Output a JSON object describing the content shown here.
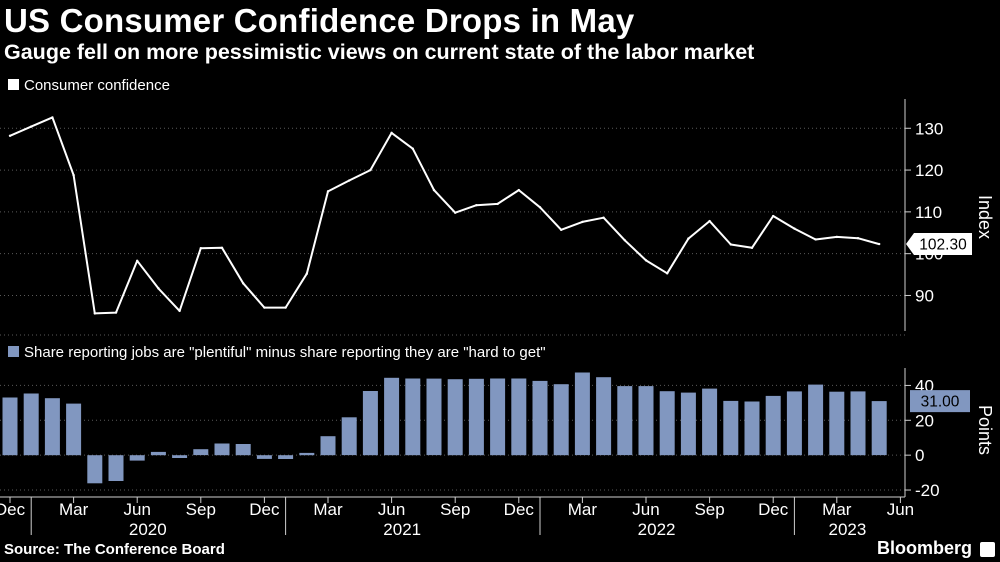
{
  "title": "US Consumer Confidence Drops in May",
  "subtitle": "Gauge fell on more pessimistic views on current state of the labor market",
  "footer": {
    "source": "Source: The Conference Board",
    "brand": "Bloomberg",
    "brand_icon": "bloomberg-terminal-icon"
  },
  "colors": {
    "background": "#000000",
    "line": "#ffffff",
    "bar": "#8197c0",
    "grid": "#5a5a5a",
    "text": "#ffffff"
  },
  "chart_data": [
    {
      "type": "line",
      "legend": "Consumer confidence",
      "ylabel": "Index",
      "ylim": [
        81.5,
        137
      ],
      "yticks": [
        90,
        100,
        110,
        120,
        130
      ],
      "ytick_labels": [
        "90",
        "100",
        "110",
        "120",
        "130"
      ],
      "last_value_label": "102.30",
      "x": [
        "2019-12",
        "2020-01",
        "2020-02",
        "2020-03",
        "2020-04",
        "2020-05",
        "2020-06",
        "2020-07",
        "2020-08",
        "2020-09",
        "2020-10",
        "2020-11",
        "2020-12",
        "2021-01",
        "2021-02",
        "2021-03",
        "2021-04",
        "2021-05",
        "2021-06",
        "2021-07",
        "2021-08",
        "2021-09",
        "2021-10",
        "2021-11",
        "2021-12",
        "2022-01",
        "2022-02",
        "2022-03",
        "2022-04",
        "2022-05",
        "2022-06",
        "2022-07",
        "2022-08",
        "2022-09",
        "2022-10",
        "2022-11",
        "2022-12",
        "2023-01",
        "2023-02",
        "2023-03",
        "2023-04",
        "2023-05"
      ],
      "values": [
        128.2,
        130.4,
        132.6,
        118.8,
        85.7,
        85.9,
        98.3,
        91.7,
        86.3,
        101.3,
        101.4,
        92.9,
        87.1,
        87.1,
        95.2,
        114.9,
        117.5,
        120.0,
        128.9,
        125.1,
        115.2,
        109.8,
        111.6,
        111.9,
        115.2,
        111.1,
        105.7,
        107.6,
        108.6,
        103.2,
        98.4,
        95.3,
        103.6,
        107.8,
        102.2,
        101.4,
        109.0,
        106.0,
        103.4,
        104.0,
        103.7,
        102.3
      ]
    },
    {
      "type": "bar",
      "legend": "Share reporting jobs are \"plentiful\" minus share reporting they are \"hard to get\"",
      "ylabel": "Points",
      "ylim": [
        -24,
        50
      ],
      "yticks": [
        -20,
        0,
        20,
        40
      ],
      "ytick_labels": [
        "-20",
        "0",
        "20",
        "40"
      ],
      "last_value_label": "31.00",
      "x": [
        "2019-12",
        "2020-01",
        "2020-02",
        "2020-03",
        "2020-04",
        "2020-05",
        "2020-06",
        "2020-07",
        "2020-08",
        "2020-09",
        "2020-10",
        "2020-11",
        "2020-12",
        "2021-01",
        "2021-02",
        "2021-03",
        "2021-04",
        "2021-05",
        "2021-06",
        "2021-07",
        "2021-08",
        "2021-09",
        "2021-10",
        "2021-11",
        "2021-12",
        "2022-01",
        "2022-02",
        "2022-03",
        "2022-04",
        "2022-05",
        "2022-06",
        "2022-07",
        "2022-08",
        "2022-09",
        "2022-10",
        "2022-11",
        "2022-12",
        "2023-01",
        "2023-02",
        "2023-03",
        "2023-04",
        "2023-05"
      ],
      "values": [
        33.1,
        35.4,
        32.7,
        29.6,
        -16.1,
        -14.8,
        -3.1,
        1.9,
        -1.6,
        3.4,
        6.7,
        6.4,
        -2.1,
        -2.2,
        1.3,
        10.9,
        21.7,
        36.8,
        44.4,
        44.0,
        43.9,
        43.6,
        43.8,
        44.0,
        44.0,
        42.6,
        40.7,
        47.4,
        44.7,
        39.6,
        39.6,
        36.7,
        35.9,
        38.2,
        31.1,
        30.8,
        34.0,
        36.6,
        40.5,
        36.4,
        36.6,
        31.0
      ]
    }
  ],
  "x_axis": {
    "month_labels": [
      "Dec",
      "Mar",
      "Jun",
      "Sep",
      "Dec",
      "Mar",
      "Jun",
      "Sep",
      "Dec",
      "Mar",
      "Jun",
      "Sep",
      "Dec",
      "Mar",
      "Jun"
    ],
    "month_label_indices": [
      0,
      3,
      6,
      9,
      12,
      15,
      18,
      21,
      24,
      27,
      30,
      33,
      36,
      39,
      42
    ],
    "year_labels": [
      "2020",
      "2021",
      "2022",
      "2023"
    ],
    "year_label_indices": [
      6.5,
      18.5,
      30.5,
      39.5
    ]
  }
}
